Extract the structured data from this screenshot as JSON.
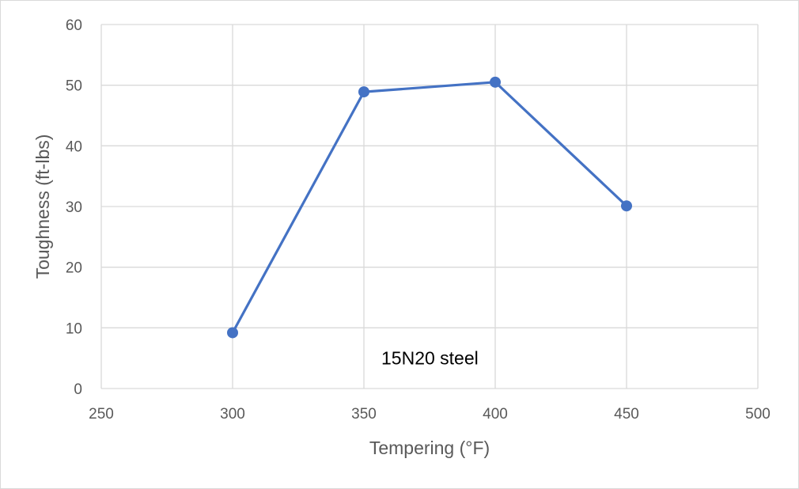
{
  "chart_data": {
    "type": "scatter",
    "xlabel": "Tempering (°F)",
    "ylabel": "Toughness (ft-lbs)",
    "xlim": [
      250,
      500
    ],
    "ylim": [
      0,
      60
    ],
    "xticks": [
      250,
      300,
      350,
      400,
      450,
      500
    ],
    "yticks": [
      0,
      10,
      20,
      30,
      40,
      50,
      60
    ],
    "grid": true,
    "legend": "none",
    "series": [
      {
        "x": [
          300,
          350,
          400,
          450
        ],
        "y": [
          9.2,
          48.9,
          50.5,
          30.1
        ],
        "color": "#4472c4",
        "mode": "lines+markers"
      }
    ],
    "annotations": [
      {
        "text": "15N20 steel",
        "x": 350,
        "y": 5
      }
    ]
  }
}
